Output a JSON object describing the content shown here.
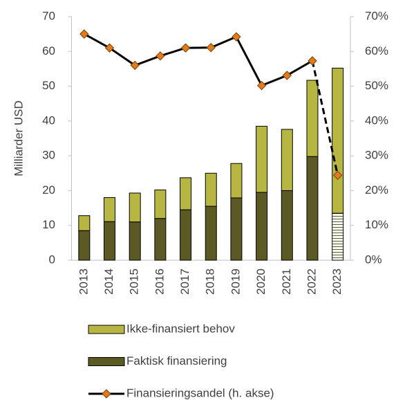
{
  "chart_data": {
    "type": "bar",
    "y_label": "Milliarder USD",
    "categories": [
      "2013",
      "2014",
      "2015",
      "2016",
      "2017",
      "2018",
      "2019",
      "2020",
      "2021",
      "2022",
      "2023"
    ],
    "series": [
      {
        "name": "Faktisk finansiering",
        "color": "#5b5a24",
        "values": [
          8.5,
          11.1,
          11,
          12,
          14.5,
          15.5,
          17.9,
          19.5,
          20,
          29.8,
          13.5
        ],
        "hatched": [
          10
        ]
      },
      {
        "name": "Ikke-finansiert behov",
        "color": "#b8b642",
        "values": [
          4.3,
          6.9,
          8.3,
          8.2,
          9.2,
          9.5,
          9.9,
          19,
          17.6,
          21.9,
          41.7
        ]
      },
      {
        "name": "Finansieringsandel (h. akse)",
        "type": "line",
        "axis": "y2",
        "color": "#000000",
        "marker_color": "#e07b20",
        "dashed_from": 9,
        "values": [
          65,
          61,
          56,
          58.7,
          61,
          61.1,
          64.2,
          50.2,
          53.1,
          57.3,
          24.4
        ]
      }
    ],
    "ylim": [
      0,
      70
    ],
    "yticks": [
      0,
      10,
      20,
      30,
      40,
      50,
      60,
      70
    ],
    "y2lim": [
      0,
      70
    ],
    "y2ticks": [
      {
        "value": 0,
        "label": "0%"
      },
      {
        "value": 10,
        "label": "10%"
      },
      {
        "value": 20,
        "label": "20%"
      },
      {
        "value": 30,
        "label": "30%"
      },
      {
        "value": 40,
        "label": "40%"
      },
      {
        "value": 50,
        "label": "50%"
      },
      {
        "value": 60,
        "label": "60%"
      },
      {
        "value": 70,
        "label": "70%"
      }
    ],
    "legend_order": [
      1,
      0,
      2
    ]
  }
}
